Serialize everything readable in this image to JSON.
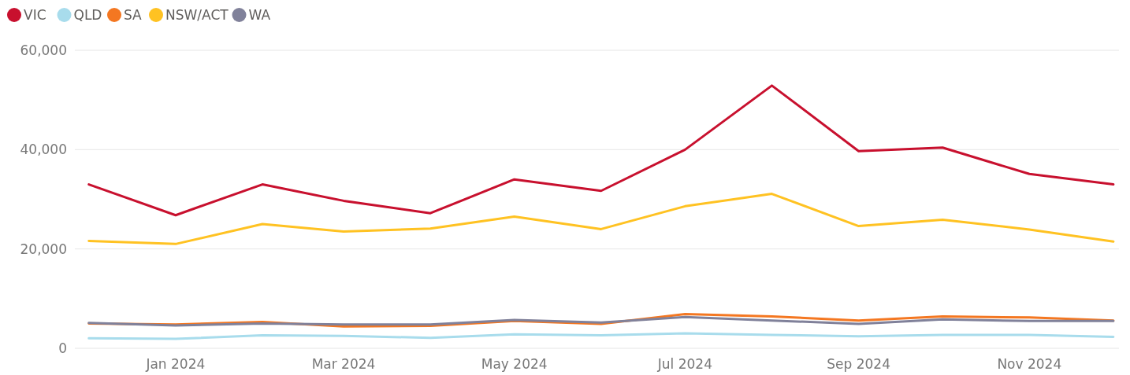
{
  "chart_data": {
    "type": "line",
    "x": [
      "2023-12",
      "2024-01",
      "2024-02",
      "2024-03",
      "2024-04",
      "2024-05",
      "2024-06",
      "2024-07",
      "2024-08",
      "2024-09",
      "2024-10",
      "2024-11",
      "2024-12"
    ],
    "series": [
      {
        "name": "VIC",
        "color": "#c8102e",
        "values": [
          33000,
          26800,
          33000,
          29700,
          27200,
          34000,
          31700,
          40000,
          52900,
          39700,
          40400,
          35100,
          33000
        ]
      },
      {
        "name": "QLD",
        "color": "#a8dcec",
        "values": [
          2000,
          1900,
          2600,
          2500,
          2100,
          2800,
          2600,
          3000,
          2700,
          2400,
          2700,
          2700,
          2300
        ]
      },
      {
        "name": "SA",
        "color": "#f47721",
        "values": [
          5000,
          4800,
          5300,
          4400,
          4500,
          5500,
          4900,
          6900,
          6400,
          5600,
          6400,
          6200,
          5600
        ]
      },
      {
        "name": "NSW/ACT",
        "color": "#ffc222",
        "values": [
          21600,
          21000,
          25000,
          23500,
          24100,
          26500,
          24000,
          28600,
          31100,
          24600,
          25900,
          23900,
          21500
        ]
      },
      {
        "name": "WA",
        "color": "#80819a",
        "values": [
          5100,
          4600,
          5000,
          4800,
          4800,
          5700,
          5200,
          6300,
          5600,
          4900,
          5800,
          5500,
          5500
        ]
      }
    ],
    "xlim": [
      "2023-11-26",
      "2024-12-03"
    ],
    "xticks": [
      {
        "value": "2024-01",
        "label": "Jan 2024"
      },
      {
        "value": "2024-03",
        "label": "Mar 2024"
      },
      {
        "value": "2024-05",
        "label": "May 2024"
      },
      {
        "value": "2024-07",
        "label": "Jul 2024"
      },
      {
        "value": "2024-09",
        "label": "Sep 2024"
      },
      {
        "value": "2024-11",
        "label": "Nov 2024"
      }
    ],
    "ylim": [
      0,
      60000
    ],
    "yticks": [
      {
        "value": 0,
        "label": "0"
      },
      {
        "value": 20000,
        "label": "20,000"
      },
      {
        "value": 40000,
        "label": "40,000"
      },
      {
        "value": 60000,
        "label": "60,000"
      }
    ],
    "grid": "y",
    "legend": "top left",
    "marker": "none",
    "line_style": "solid"
  }
}
